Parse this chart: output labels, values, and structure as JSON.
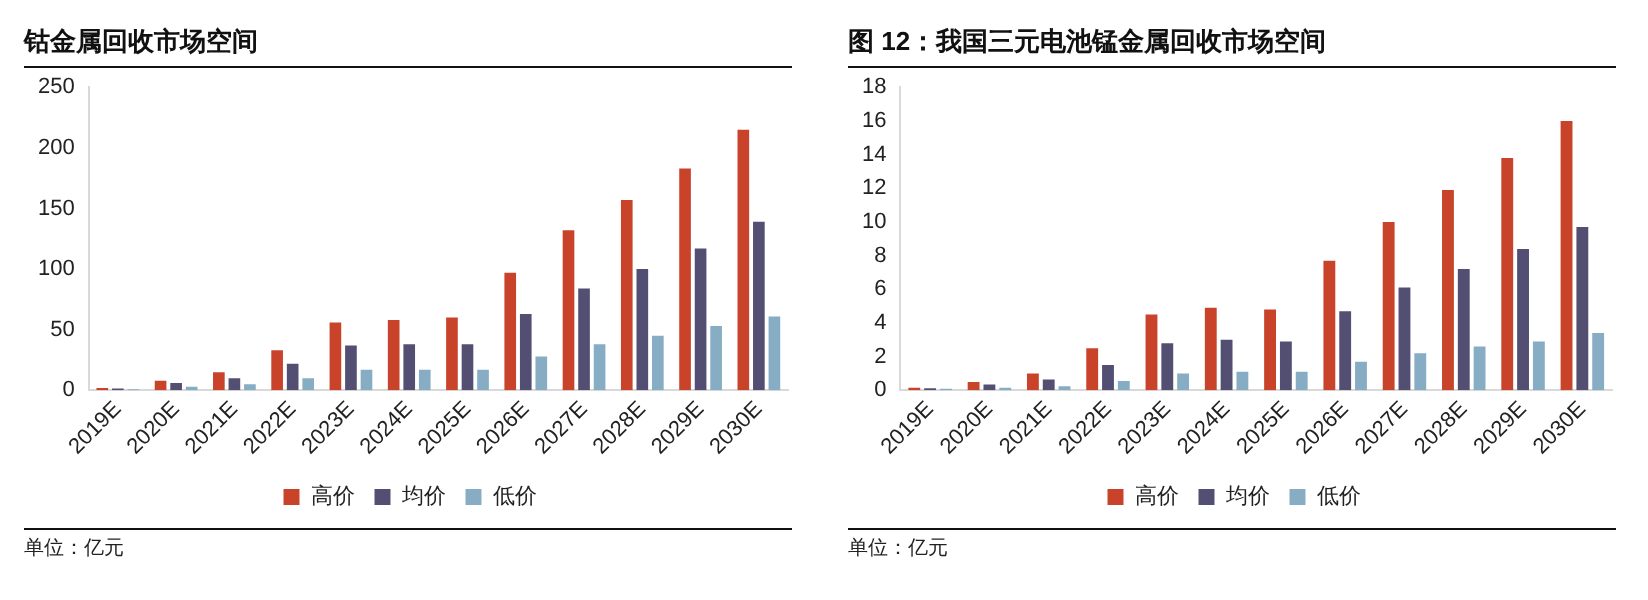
{
  "chart_data": [
    {
      "type": "bar",
      "title": "钴金属回收市场空间",
      "categories": [
        "2019E",
        "2020E",
        "2021E",
        "2022E",
        "2023E",
        "2024E",
        "2025E",
        "2026E",
        "2027E",
        "2028E",
        "2029E",
        "2030E"
      ],
      "series": [
        {
          "name": "高价",
          "color": "#c8432a",
          "values": [
            2,
            8,
            15,
            33,
            56,
            58,
            60,
            97,
            132,
            157,
            183,
            215
          ]
        },
        {
          "name": "均价",
          "color": "#524f73",
          "values": [
            1.5,
            6,
            10,
            22,
            37,
            38,
            38,
            63,
            84,
            100,
            117,
            139
          ]
        },
        {
          "name": "低价",
          "color": "#86adc4",
          "values": [
            1,
            3,
            5,
            10,
            17,
            17,
            17,
            28,
            38,
            45,
            53,
            61
          ]
        }
      ],
      "ylim": [
        0,
        250
      ],
      "yticks": [
        0,
        50,
        100,
        150,
        200,
        250
      ],
      "grid": false,
      "legend": "bottom",
      "annotations": [
        "单位：亿元"
      ]
    },
    {
      "type": "bar",
      "title": "图 12：我国三元电池锰金属回收市场空间",
      "categories": [
        "2019E",
        "2020E",
        "2021E",
        "2022E",
        "2023E",
        "2024E",
        "2025E",
        "2026E",
        "2027E",
        "2028E",
        "2029E",
        "2030E"
      ],
      "series": [
        {
          "name": "高价",
          "color": "#c8432a",
          "values": [
            0.15,
            0.5,
            1.0,
            2.5,
            4.5,
            4.9,
            4.8,
            7.7,
            10.0,
            11.9,
            13.8,
            16.0
          ]
        },
        {
          "name": "均价",
          "color": "#524f73",
          "values": [
            0.12,
            0.35,
            0.65,
            1.5,
            2.8,
            3.0,
            2.9,
            4.7,
            6.1,
            7.2,
            8.4,
            9.7
          ]
        },
        {
          "name": "低价",
          "color": "#86adc4",
          "values": [
            0.1,
            0.15,
            0.25,
            0.55,
            1.0,
            1.1,
            1.1,
            1.7,
            2.2,
            2.6,
            2.9,
            3.4
          ]
        }
      ],
      "ylim": [
        0,
        18
      ],
      "yticks": [
        0,
        2,
        4,
        6,
        8,
        10,
        12,
        14,
        16,
        18
      ],
      "grid": false,
      "legend": "bottom",
      "annotations": [
        "单位：亿元"
      ]
    }
  ]
}
